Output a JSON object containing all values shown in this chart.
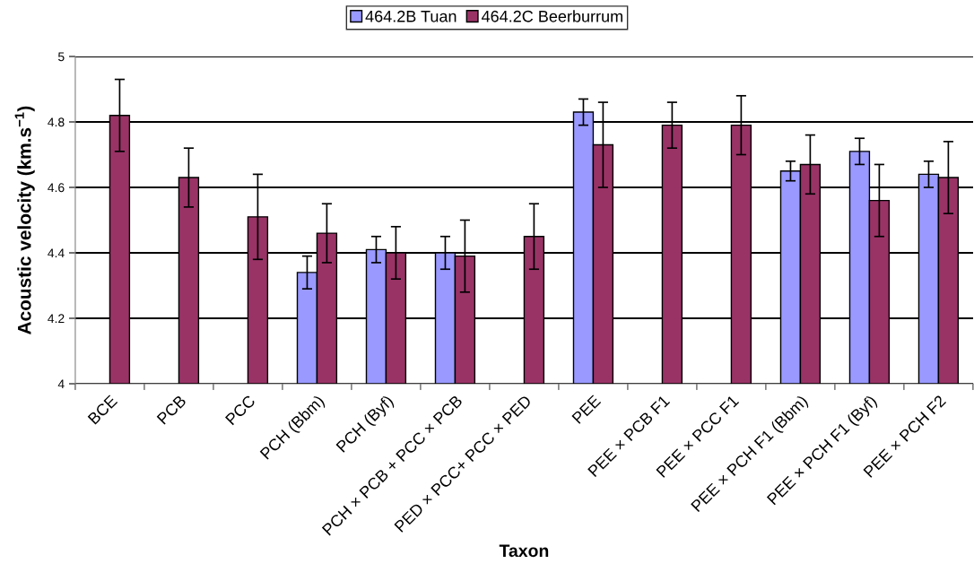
{
  "chart_data": {
    "type": "bar",
    "categories": [
      "BCE",
      "PCB",
      "PCC",
      "PCH (Bbm)",
      "PCH (Byf)",
      "PCH × PCB + PCC × PCB",
      "PED × PCC+ PCC × PED",
      "PEE",
      "PEE × PCB F1",
      "PEE × PCC F1",
      "PEE × PCH F1 (Bbm)",
      "PEE × PCH F1 (Byf)",
      "PEE × PCH F2"
    ],
    "series": [
      {
        "name": "464.2B Tuan",
        "color": "#9999ff",
        "values": [
          null,
          null,
          null,
          4.34,
          4.41,
          4.4,
          null,
          4.83,
          null,
          null,
          4.65,
          4.71,
          4.64
        ],
        "errors": [
          null,
          null,
          null,
          0.05,
          0.04,
          0.05,
          null,
          0.04,
          null,
          null,
          0.03,
          0.04,
          0.04
        ]
      },
      {
        "name": "464.2C Beerburrum",
        "color": "#993366",
        "values": [
          4.82,
          4.63,
          4.51,
          4.46,
          4.4,
          4.39,
          4.45,
          4.73,
          4.79,
          4.79,
          4.67,
          4.56,
          4.63
        ],
        "errors": [
          0.11,
          0.09,
          0.13,
          0.09,
          0.08,
          0.11,
          0.1,
          0.13,
          0.07,
          0.09,
          0.09,
          0.11,
          0.11
        ]
      }
    ],
    "xlabel": "Taxon",
    "ylabel": "Acoustic velocity (km.s$^{−1}$)",
    "ylim": [
      4,
      5
    ],
    "yticks": [
      4,
      4.2,
      4.4,
      4.6,
      4.8,
      5
    ],
    "grid": "y",
    "legend": "top"
  }
}
